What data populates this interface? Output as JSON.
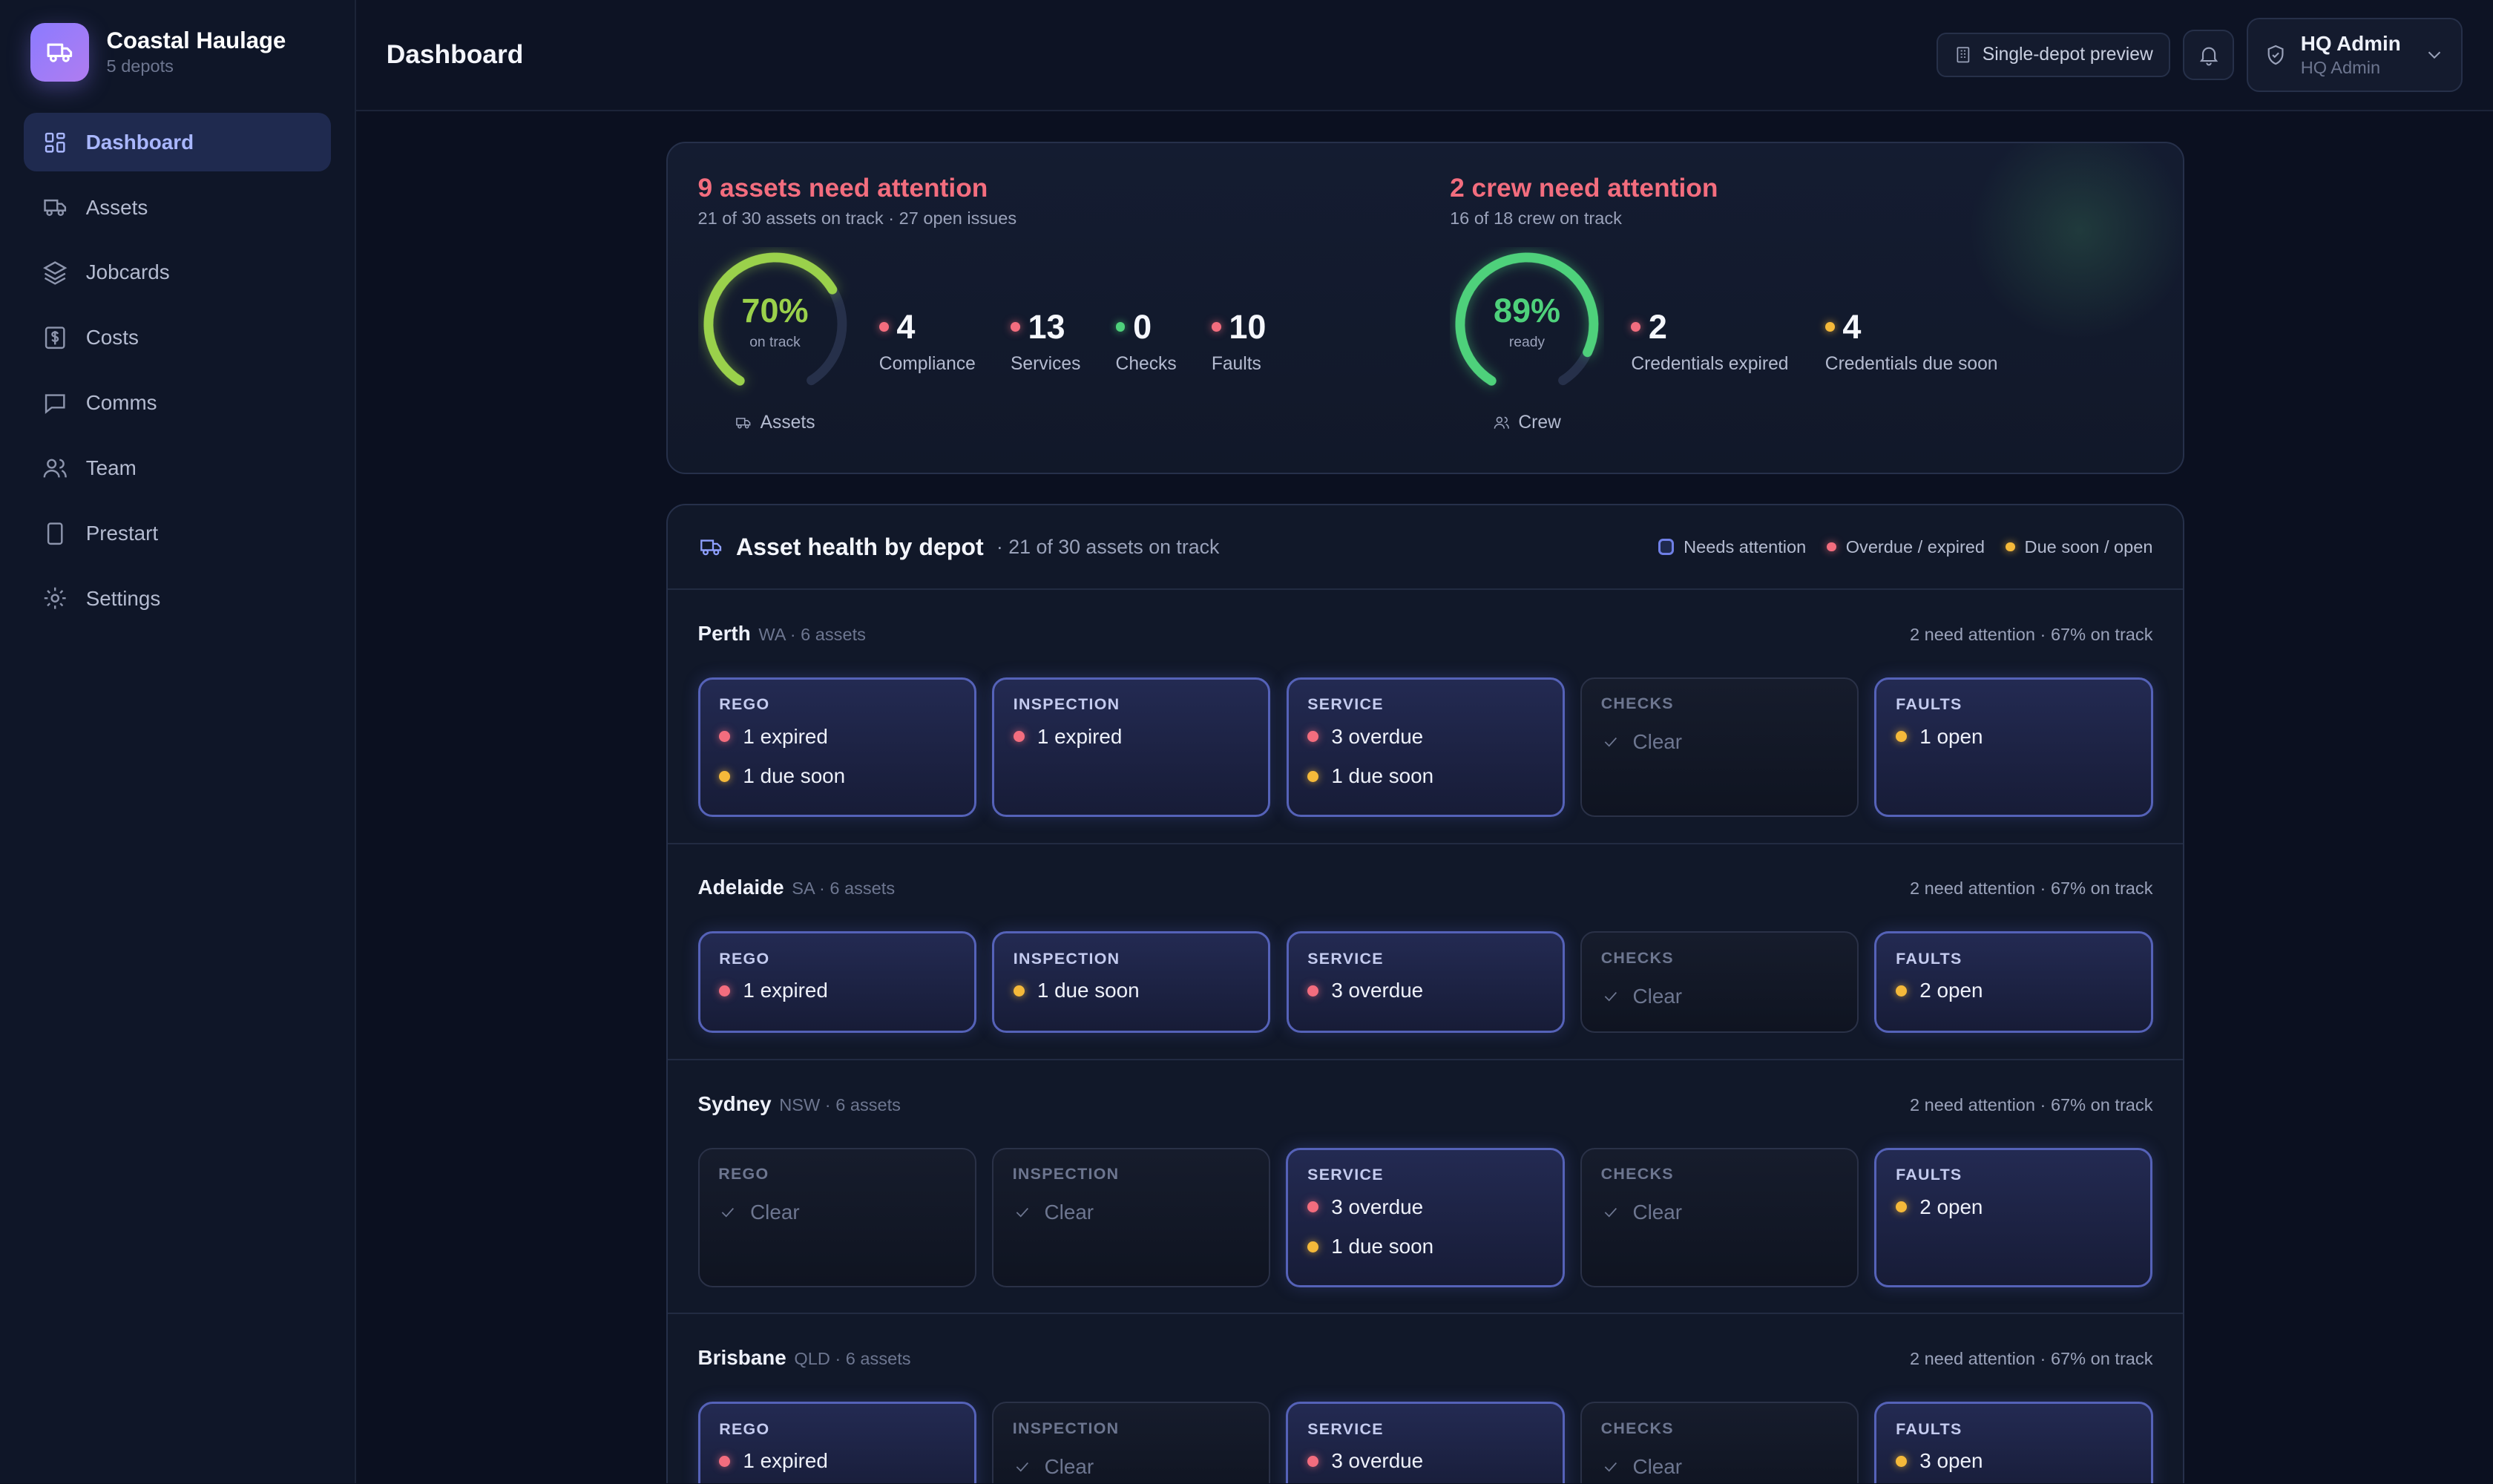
{
  "brand": {
    "name": "Coastal Haulage",
    "sub": "5 depots"
  },
  "nav": [
    {
      "label": "Dashboard",
      "icon": "dashboard-icon",
      "active": true
    },
    {
      "label": "Assets",
      "icon": "truck-icon"
    },
    {
      "label": "Jobcards",
      "icon": "layers-icon"
    },
    {
      "label": "Costs",
      "icon": "dollar-icon"
    },
    {
      "label": "Comms",
      "icon": "chat-icon"
    },
    {
      "label": "Team",
      "icon": "users-icon"
    },
    {
      "label": "Prestart",
      "icon": "phone-icon"
    },
    {
      "label": "Settings",
      "icon": "gear-icon"
    }
  ],
  "topbar": {
    "title": "Dashboard",
    "preview_label": "Single-depot preview",
    "admin_name": "HQ Admin",
    "admin_role": "HQ Admin"
  },
  "summary": {
    "assets": {
      "title": "9 assets need attention",
      "sub": "21 of 30 assets on track · 27 open issues",
      "gauge_pct": "70%",
      "gauge_value": 0.7,
      "gauge_label": "on track",
      "gauge_caption": "Assets",
      "gauge_color": "#9ad14b",
      "stats": [
        {
          "num": "4",
          "label": "Compliance",
          "dot": "red"
        },
        {
          "num": "13",
          "label": "Services",
          "dot": "red"
        },
        {
          "num": "0",
          "label": "Checks",
          "dot": "green"
        },
        {
          "num": "10",
          "label": "Faults",
          "dot": "red"
        }
      ]
    },
    "crew": {
      "title": "2 crew need attention",
      "sub": "16 of 18 crew on track",
      "gauge_pct": "89%",
      "gauge_value": 0.89,
      "gauge_label": "ready",
      "gauge_caption": "Crew",
      "gauge_color": "#4ed17b",
      "stats": [
        {
          "num": "2",
          "label": "Credentials expired",
          "dot": "red"
        },
        {
          "num": "4",
          "label": "Credentials due soon",
          "dot": "yellow"
        }
      ]
    }
  },
  "depot_health": {
    "title": "Asset health by depot",
    "sub": "· 21 of 30 assets on track",
    "legend": {
      "attention": "Needs attention",
      "overdue": "Overdue / expired",
      "due_soon": "Due soon / open"
    },
    "depots": [
      {
        "name": "Perth",
        "meta": "WA · 6 assets",
        "stat": "2 need attention · 67% on track",
        "tiles": [
          {
            "label": "REGO",
            "attn": true,
            "lines": [
              {
                "dot": "red",
                "text": "1 expired"
              },
              {
                "dot": "yellow",
                "text": "1 due soon"
              }
            ]
          },
          {
            "label": "INSPECTION",
            "attn": true,
            "lines": [
              {
                "dot": "red",
                "text": "1 expired"
              }
            ]
          },
          {
            "label": "SERVICE",
            "attn": true,
            "lines": [
              {
                "dot": "red",
                "text": "3 overdue"
              },
              {
                "dot": "yellow",
                "text": "1 due soon"
              }
            ]
          },
          {
            "label": "CHECKS",
            "attn": false,
            "clear": "Clear"
          },
          {
            "label": "FAULTS",
            "attn": true,
            "lines": [
              {
                "dot": "yellow",
                "text": "1 open"
              }
            ]
          }
        ]
      },
      {
        "name": "Adelaide",
        "meta": "SA · 6 assets",
        "stat": "2 need attention · 67% on track",
        "tiles": [
          {
            "label": "REGO",
            "attn": true,
            "lines": [
              {
                "dot": "red",
                "text": "1 expired"
              }
            ]
          },
          {
            "label": "INSPECTION",
            "attn": true,
            "lines": [
              {
                "dot": "yellow",
                "text": "1 due soon"
              }
            ]
          },
          {
            "label": "SERVICE",
            "attn": true,
            "lines": [
              {
                "dot": "red",
                "text": "3 overdue"
              }
            ]
          },
          {
            "label": "CHECKS",
            "attn": false,
            "clear": "Clear"
          },
          {
            "label": "FAULTS",
            "attn": true,
            "lines": [
              {
                "dot": "yellow",
                "text": "2 open"
              }
            ]
          }
        ]
      },
      {
        "name": "Sydney",
        "meta": "NSW · 6 assets",
        "stat": "2 need attention · 67% on track",
        "tiles": [
          {
            "label": "REGO",
            "attn": false,
            "clear": "Clear"
          },
          {
            "label": "INSPECTION",
            "attn": false,
            "clear": "Clear"
          },
          {
            "label": "SERVICE",
            "attn": true,
            "lines": [
              {
                "dot": "red",
                "text": "3 overdue"
              },
              {
                "dot": "yellow",
                "text": "1 due soon"
              }
            ]
          },
          {
            "label": "CHECKS",
            "attn": false,
            "clear": "Clear"
          },
          {
            "label": "FAULTS",
            "attn": true,
            "lines": [
              {
                "dot": "yellow",
                "text": "2 open"
              }
            ]
          }
        ]
      },
      {
        "name": "Brisbane",
        "meta": "QLD · 6 assets",
        "stat": "2 need attention · 67% on track",
        "tiles": [
          {
            "label": "REGO",
            "attn": true,
            "lines": [
              {
                "dot": "red",
                "text": "1 expired"
              }
            ]
          },
          {
            "label": "INSPECTION",
            "attn": false,
            "clear": "Clear"
          },
          {
            "label": "SERVICE",
            "attn": true,
            "lines": [
              {
                "dot": "red",
                "text": "3 overdue"
              }
            ]
          },
          {
            "label": "CHECKS",
            "attn": false,
            "clear": "Clear"
          },
          {
            "label": "FAULTS",
            "attn": true,
            "lines": [
              {
                "dot": "yellow",
                "text": "3 open"
              }
            ]
          }
        ]
      }
    ]
  }
}
